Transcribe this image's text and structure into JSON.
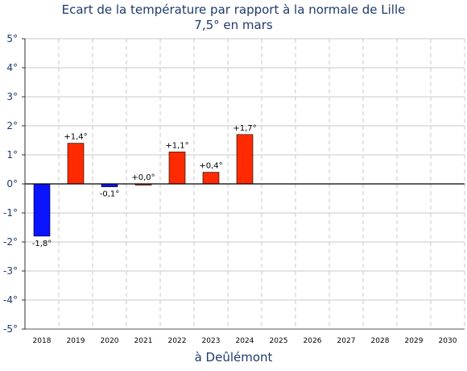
{
  "chart_data": {
    "type": "bar",
    "title": "Ecart de la température par rapport à la normale de Lille",
    "subtitle": "7,5° en mars",
    "xlabel": "à Deûlémont",
    "ylabel": "",
    "ylim": [
      -5,
      5
    ],
    "yticks": [
      "5°",
      "4°",
      "3°",
      "2°",
      "1°",
      "0°",
      "-1°",
      "-2°",
      "-3°",
      "-4°",
      "-5°"
    ],
    "categories": [
      "2018",
      "2019",
      "2020",
      "2021",
      "2022",
      "2023",
      "2024",
      "2025",
      "2026",
      "2027",
      "2028",
      "2029",
      "2030"
    ],
    "values": [
      -1.8,
      1.4,
      -0.1,
      0.0,
      1.1,
      0.4,
      1.7,
      null,
      null,
      null,
      null,
      null,
      null
    ],
    "data_labels": [
      "-1,8°",
      "+1,4°",
      "-0,1°",
      "+0,0°",
      "+1,1°",
      "+0,4°",
      "+1,7°",
      "",
      "",
      "",
      "",
      "",
      ""
    ],
    "grid": true,
    "colors": {
      "positive": "#ff2a00",
      "negative": "#0a14ff",
      "grid": "#c8c8c8",
      "text": "#1f3a6b"
    }
  }
}
